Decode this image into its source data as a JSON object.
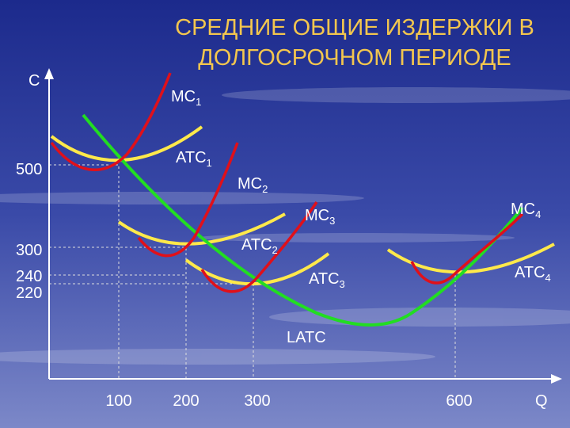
{
  "title": {
    "line1": "СРЕДНИЕ ОБЩИЕ ИЗДЕРЖКИ В",
    "line2": "ДОЛГОСРОЧНОМ ПЕРИОДЕ"
  },
  "axes": {
    "y": "C",
    "x": "Q"
  },
  "x_ticks": [
    "100",
    "200",
    "300",
    "600"
  ],
  "y_ticks": [
    "500",
    "300",
    "240",
    "220"
  ],
  "curves": [
    {
      "name": "MC",
      "index": "1"
    },
    {
      "name": "ATC",
      "index": "1"
    },
    {
      "name": "MC",
      "index": "2"
    },
    {
      "name": "ATC",
      "index": "2"
    },
    {
      "name": "MC",
      "index": "3"
    },
    {
      "name": "ATC",
      "index": "3"
    },
    {
      "name": "MC",
      "index": "4"
    },
    {
      "name": "ATC",
      "index": "4"
    },
    {
      "name": "LATC"
    }
  ]
}
